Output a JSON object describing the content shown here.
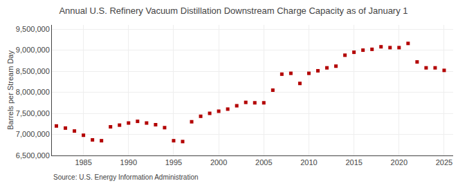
{
  "chart_data": {
    "type": "scatter",
    "title": "Annual U.S. Refinery Vacuum Distillation Downstream Charge Capacity as of January 1",
    "ylabel": "Barrels per Stream Day",
    "annotations": [
      "Source: U.S. Energy Information Administration"
    ],
    "x": [
      1982,
      1983,
      1984,
      1985,
      1986,
      1987,
      1988,
      1989,
      1990,
      1991,
      1992,
      1993,
      1994,
      1995,
      1996,
      1997,
      1998,
      1999,
      2000,
      2001,
      2002,
      2003,
      2004,
      2005,
      2006,
      2007,
      2008,
      2009,
      2010,
      2011,
      2012,
      2013,
      2014,
      2015,
      2016,
      2017,
      2018,
      2019,
      2020,
      2021,
      2022,
      2023,
      2024,
      2025
    ],
    "values": [
      7200000,
      7150000,
      7080000,
      6980000,
      6870000,
      6850000,
      7180000,
      7220000,
      7270000,
      7310000,
      7270000,
      7230000,
      7160000,
      6850000,
      6830000,
      7300000,
      7430000,
      7500000,
      7550000,
      7600000,
      7680000,
      7760000,
      7750000,
      7750000,
      8050000,
      8430000,
      8450000,
      8210000,
      8450000,
      8510000,
      8580000,
      8620000,
      8880000,
      8950000,
      9000000,
      9020000,
      9080000,
      9060000,
      9060000,
      9160000,
      8720000,
      8580000,
      8580000,
      8520000
    ],
    "color": "#b30000",
    "marker": "square",
    "xlim": [
      1981.5,
      2026
    ],
    "xticks": [
      1985,
      1990,
      1995,
      2000,
      2005,
      2010,
      2015,
      2020,
      2025
    ],
    "ylim": [
      6500000,
      9600000
    ],
    "yticks": [
      {
        "value": 6500000,
        "label": "6,500,000"
      },
      {
        "value": 7000000,
        "label": "7,000,000"
      },
      {
        "value": 7500000,
        "label": "7,500,000"
      },
      {
        "value": 8000000,
        "label": "8,000,000"
      },
      {
        "value": 8500000,
        "label": "8,500,000"
      },
      {
        "value": 9000000,
        "label": "9,000,000"
      },
      {
        "value": 9500000,
        "label": "9,500,000"
      }
    ],
    "grid": true
  }
}
